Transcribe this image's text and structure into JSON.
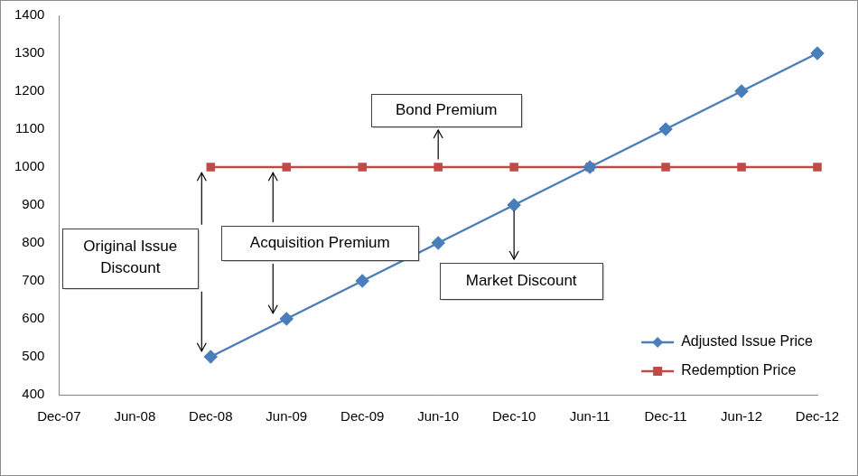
{
  "chart_data": {
    "type": "line",
    "categories": [
      "Dec-07",
      "Jun-08",
      "Dec-08",
      "Jun-09",
      "Dec-09",
      "Jun-10",
      "Dec-10",
      "Jun-11",
      "Dec-11",
      "Jun-12",
      "Dec-12"
    ],
    "series": [
      {
        "name": "Adjusted Issue Price",
        "color": "#4a7ebb",
        "marker": "diamond",
        "line_style": "solid",
        "values": [
          null,
          null,
          500,
          600,
          700,
          800,
          900,
          1000,
          1100,
          1200,
          1300
        ]
      },
      {
        "name": "Redemption Price",
        "color": "#be4b48",
        "marker": "square",
        "line_style": "solid",
        "values": [
          null,
          null,
          1000,
          1000,
          1000,
          1000,
          1000,
          1000,
          1000,
          1000,
          1000
        ]
      }
    ],
    "ylim": [
      400,
      1400
    ],
    "yticks": [
      400,
      500,
      600,
      700,
      800,
      900,
      1000,
      1100,
      1200,
      1300,
      1400
    ],
    "grid": false,
    "legend": "lower right",
    "annotations": [
      "Bond Premium",
      "Acquisition Premium",
      "Original Issue Discount",
      "Market Discount"
    ]
  }
}
